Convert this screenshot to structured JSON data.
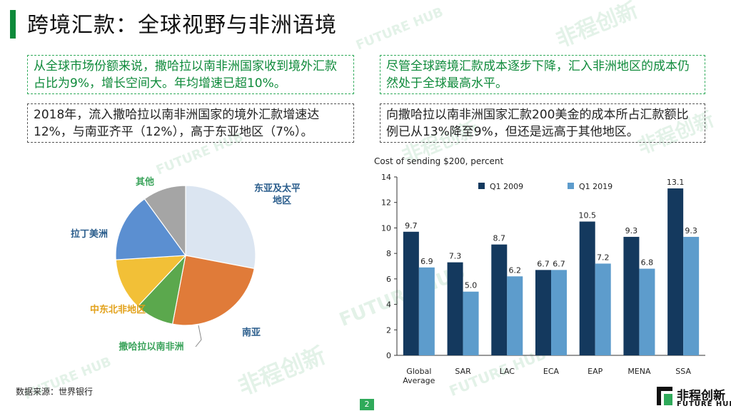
{
  "title": "跨境汇款：全球视野与非洲语境",
  "watermark": {
    "cn": "非程创新",
    "en": "FUTURE HUB"
  },
  "boxes": {
    "left_top": "从全球市场份额来说，撒哈拉以南非洲国家收到境外汇款占比为9%，增长空间大。年均增速已超10%。",
    "left_bottom": "2018年，流入撒哈拉以南非洲国家的境外汇款增速达12%，与南亚齐平（12%），高于东亚地区（7%）。",
    "right_top": "尽管全球跨境汇款成本逐步下降，汇入非洲地区的成本仍然处于全球最高水平。",
    "right_bottom": "向撒哈拉以南非洲国家汇款200美金的成本所占汇款额比例已从13%降至9%，但还是远高于其他地区。"
  },
  "colors": {
    "accent": "#0e8a3a",
    "accent_light": "#2faa5a",
    "pie_label": "#3aa35a",
    "pie_label_dark": "#2a5d8c"
  },
  "chart_data": [
    {
      "type": "pie",
      "labels": [
        "东亚及太平洋地区",
        "南亚",
        "撒哈拉以南非洲",
        "中东北非地区",
        "拉丁美洲",
        "其他"
      ],
      "values": [
        28,
        25,
        9,
        12,
        16,
        10
      ],
      "colors": [
        "#dbe5f1",
        "#e07b39",
        "#5ba84d",
        "#f2c037",
        "#5b8fd1",
        "#a5a5a5"
      ],
      "label_colors": [
        "#2a5d8c",
        "#2a5d8c",
        "#3aa35a",
        "#e2a11a",
        "#2a5d8c",
        "#3aa35a"
      ]
    },
    {
      "type": "bar",
      "title": "Cost of sending $200, percent",
      "categories": [
        [
          "Global",
          "Average"
        ],
        [
          "SAR"
        ],
        [
          "LAC"
        ],
        [
          "ECA"
        ],
        [
          "EAP"
        ],
        [
          "MENA"
        ],
        [
          "SSA"
        ]
      ],
      "series": [
        {
          "name": "Q1 2009",
          "values": [
            9.7,
            7.3,
            8.7,
            6.7,
            10.5,
            9.3,
            13.1
          ],
          "labels": [
            "9.7",
            "7.3",
            "8.7",
            "6.7",
            "10.5",
            "9.3",
            "13.1"
          ],
          "color": "#14395e"
        },
        {
          "name": "Q1 2019",
          "values": [
            6.9,
            5.0,
            6.2,
            6.7,
            7.2,
            6.8,
            9.3
          ],
          "labels": [
            "6.9",
            "5.0",
            "6.2",
            "6.7",
            "7.2",
            "6.8",
            "9.3"
          ],
          "color": "#5d9ccc"
        }
      ],
      "ylim": [
        0,
        14
      ],
      "yticks": [
        0,
        2,
        4,
        6,
        8,
        10,
        12,
        14
      ],
      "legend": "top"
    }
  ],
  "source": "数据来源：世界银行",
  "page_number": "2",
  "logo": {
    "cn": "非程创新",
    "en": "FUTURE HUB"
  }
}
